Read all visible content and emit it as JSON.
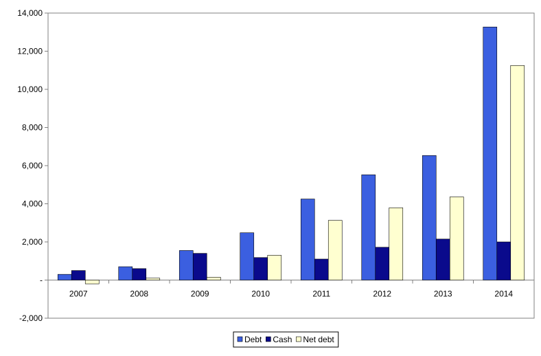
{
  "chart_data": {
    "type": "bar",
    "categories": [
      "2007",
      "2008",
      "2009",
      "2010",
      "2011",
      "2012",
      "2013",
      "2014"
    ],
    "series": [
      {
        "name": "Debt",
        "color": "#3b5fe0",
        "values": [
          300,
          700,
          1550,
          2480,
          4250,
          5520,
          6530,
          13270
        ]
      },
      {
        "name": "Cash",
        "color": "#0a0a8c",
        "values": [
          500,
          600,
          1400,
          1180,
          1100,
          1720,
          2150,
          2000
        ]
      },
      {
        "name": "Net debt",
        "color": "#ffffd0",
        "values": [
          -200,
          100,
          150,
          1300,
          3130,
          3790,
          4360,
          11250
        ]
      }
    ],
    "ylim": [
      -2000,
      14000
    ],
    "yticks": [
      -2000,
      0,
      2000,
      4000,
      6000,
      8000,
      10000,
      12000,
      14000
    ],
    "ytick_labels": [
      "-2,000",
      "-",
      "2,000",
      "4,000",
      "6,000",
      "8,000",
      "10,000",
      "12,000",
      "14,000"
    ],
    "xlabel": "",
    "ylabel": "",
    "title": "",
    "grid": false,
    "legend_position": "bottom"
  }
}
